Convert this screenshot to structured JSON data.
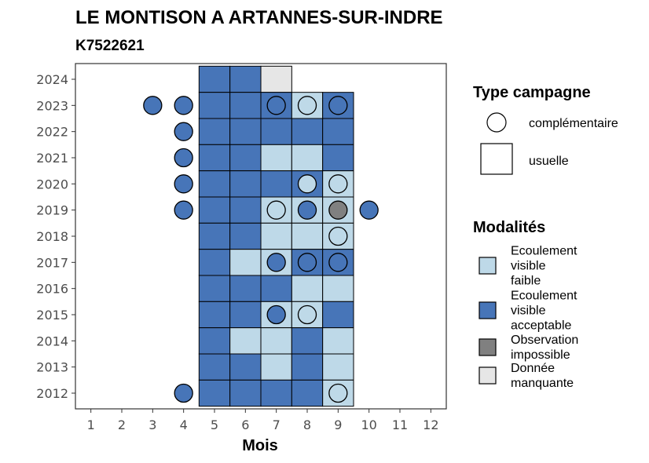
{
  "chart_data": {
    "type": "heatmap",
    "title": "LE MONTISON A ARTANNES-SUR-INDRE",
    "subtitle": "K7522621",
    "xlabel": "Mois",
    "ylabel": "",
    "x_ticks": [
      "1",
      "2",
      "3",
      "4",
      "5",
      "6",
      "7",
      "8",
      "9",
      "10",
      "11",
      "12"
    ],
    "y_ticks": [
      "2012",
      "2013",
      "2014",
      "2015",
      "2016",
      "2017",
      "2018",
      "2019",
      "2020",
      "2021",
      "2022",
      "2023",
      "2024"
    ],
    "xlim": [
      0.5,
      12.5
    ],
    "ylim": [
      2011.4,
      2024.6
    ],
    "grid": false,
    "legend_position": "right",
    "colors": {
      "Ecoulement visible faible": "#bed9e8",
      "Ecoulement visible acceptable": "#4775b8",
      "Observation impossible": "#808080",
      "Donnée manquante": "#e6e6e6"
    },
    "legend_shape": {
      "title": "Type campagne",
      "items": [
        "complémentaire",
        "usuelle"
      ]
    },
    "legend_fill": {
      "title": "Modalités",
      "items": [
        {
          "key": "Ecoulement visible faible",
          "lines": [
            "Ecoulement",
            "visible",
            "faible"
          ]
        },
        {
          "key": "Ecoulement visible acceptable",
          "lines": [
            "Ecoulement",
            "visible",
            "acceptable"
          ]
        },
        {
          "key": "Observation impossible",
          "lines": [
            "Observation",
            "impossible"
          ]
        },
        {
          "key": "Donnée manquante",
          "lines": [
            "Donnée",
            "manquante"
          ]
        }
      ]
    },
    "usual_campaigns": [
      {
        "year": 2024,
        "month": 5,
        "m": "Ecoulement visible acceptable"
      },
      {
        "year": 2024,
        "month": 6,
        "m": "Ecoulement visible acceptable"
      },
      {
        "year": 2024,
        "month": 7,
        "m": "Donnée manquante"
      },
      {
        "year": 2023,
        "month": 5,
        "m": "Ecoulement visible acceptable"
      },
      {
        "year": 2023,
        "month": 6,
        "m": "Ecoulement visible acceptable"
      },
      {
        "year": 2023,
        "month": 7,
        "m": "Ecoulement visible acceptable"
      },
      {
        "year": 2023,
        "month": 8,
        "m": "Ecoulement visible faible"
      },
      {
        "year": 2023,
        "month": 9,
        "m": "Ecoulement visible acceptable"
      },
      {
        "year": 2022,
        "month": 5,
        "m": "Ecoulement visible acceptable"
      },
      {
        "year": 2022,
        "month": 6,
        "m": "Ecoulement visible acceptable"
      },
      {
        "year": 2022,
        "month": 7,
        "m": "Ecoulement visible acceptable"
      },
      {
        "year": 2022,
        "month": 8,
        "m": "Ecoulement visible acceptable"
      },
      {
        "year": 2022,
        "month": 9,
        "m": "Ecoulement visible acceptable"
      },
      {
        "year": 2021,
        "month": 5,
        "m": "Ecoulement visible acceptable"
      },
      {
        "year": 2021,
        "month": 6,
        "m": "Ecoulement visible acceptable"
      },
      {
        "year": 2021,
        "month": 7,
        "m": "Ecoulement visible faible"
      },
      {
        "year": 2021,
        "month": 8,
        "m": "Ecoulement visible faible"
      },
      {
        "year": 2021,
        "month": 9,
        "m": "Ecoulement visible acceptable"
      },
      {
        "year": 2020,
        "month": 5,
        "m": "Ecoulement visible acceptable"
      },
      {
        "year": 2020,
        "month": 6,
        "m": "Ecoulement visible acceptable"
      },
      {
        "year": 2020,
        "month": 7,
        "m": "Ecoulement visible acceptable"
      },
      {
        "year": 2020,
        "month": 8,
        "m": "Ecoulement visible acceptable"
      },
      {
        "year": 2020,
        "month": 9,
        "m": "Ecoulement visible faible"
      },
      {
        "year": 2019,
        "month": 5,
        "m": "Ecoulement visible acceptable"
      },
      {
        "year": 2019,
        "month": 6,
        "m": "Ecoulement visible acceptable"
      },
      {
        "year": 2019,
        "month": 7,
        "m": "Ecoulement visible faible"
      },
      {
        "year": 2019,
        "month": 8,
        "m": "Ecoulement visible faible"
      },
      {
        "year": 2019,
        "month": 9,
        "m": "Ecoulement visible faible"
      },
      {
        "year": 2018,
        "month": 5,
        "m": "Ecoulement visible acceptable"
      },
      {
        "year": 2018,
        "month": 6,
        "m": "Ecoulement visible acceptable"
      },
      {
        "year": 2018,
        "month": 7,
        "m": "Ecoulement visible faible"
      },
      {
        "year": 2018,
        "month": 8,
        "m": "Ecoulement visible faible"
      },
      {
        "year": 2018,
        "month": 9,
        "m": "Ecoulement visible faible"
      },
      {
        "year": 2017,
        "month": 5,
        "m": "Ecoulement visible acceptable"
      },
      {
        "year": 2017,
        "month": 6,
        "m": "Ecoulement visible faible"
      },
      {
        "year": 2017,
        "month": 7,
        "m": "Ecoulement visible faible"
      },
      {
        "year": 2017,
        "month": 8,
        "m": "Ecoulement visible acceptable"
      },
      {
        "year": 2017,
        "month": 9,
        "m": "Ecoulement visible acceptable"
      },
      {
        "year": 2016,
        "month": 5,
        "m": "Ecoulement visible acceptable"
      },
      {
        "year": 2016,
        "month": 6,
        "m": "Ecoulement visible acceptable"
      },
      {
        "year": 2016,
        "month": 7,
        "m": "Ecoulement visible acceptable"
      },
      {
        "year": 2016,
        "month": 8,
        "m": "Ecoulement visible faible"
      },
      {
        "year": 2016,
        "month": 9,
        "m": "Ecoulement visible faible"
      },
      {
        "year": 2015,
        "month": 5,
        "m": "Ecoulement visible acceptable"
      },
      {
        "year": 2015,
        "month": 6,
        "m": "Ecoulement visible acceptable"
      },
      {
        "year": 2015,
        "month": 7,
        "m": "Ecoulement visible faible"
      },
      {
        "year": 2015,
        "month": 8,
        "m": "Ecoulement visible faible"
      },
      {
        "year": 2015,
        "month": 9,
        "m": "Ecoulement visible acceptable"
      },
      {
        "year": 2014,
        "month": 5,
        "m": "Ecoulement visible acceptable"
      },
      {
        "year": 2014,
        "month": 6,
        "m": "Ecoulement visible faible"
      },
      {
        "year": 2014,
        "month": 7,
        "m": "Ecoulement visible faible"
      },
      {
        "year": 2014,
        "month": 8,
        "m": "Ecoulement visible acceptable"
      },
      {
        "year": 2014,
        "month": 9,
        "m": "Ecoulement visible faible"
      },
      {
        "year": 2013,
        "month": 5,
        "m": "Ecoulement visible acceptable"
      },
      {
        "year": 2013,
        "month": 6,
        "m": "Ecoulement visible acceptable"
      },
      {
        "year": 2013,
        "month": 7,
        "m": "Ecoulement visible faible"
      },
      {
        "year": 2013,
        "month": 8,
        "m": "Ecoulement visible acceptable"
      },
      {
        "year": 2013,
        "month": 9,
        "m": "Ecoulement visible faible"
      },
      {
        "year": 2012,
        "month": 5,
        "m": "Ecoulement visible acceptable"
      },
      {
        "year": 2012,
        "month": 6,
        "m": "Ecoulement visible acceptable"
      },
      {
        "year": 2012,
        "month": 7,
        "m": "Ecoulement visible acceptable"
      },
      {
        "year": 2012,
        "month": 8,
        "m": "Ecoulement visible acceptable"
      },
      {
        "year": 2012,
        "month": 9,
        "m": "Ecoulement visible faible"
      }
    ],
    "complementary_campaigns": [
      {
        "year": 2023,
        "month": 3,
        "m": "Ecoulement visible acceptable"
      },
      {
        "year": 2023,
        "month": 4,
        "m": "Ecoulement visible acceptable"
      },
      {
        "year": 2023,
        "month": 7,
        "m": "Ecoulement visible acceptable"
      },
      {
        "year": 2023,
        "month": 8,
        "m": "Ecoulement visible faible"
      },
      {
        "year": 2023,
        "month": 9,
        "m": "Ecoulement visible acceptable"
      },
      {
        "year": 2022,
        "month": 4,
        "m": "Ecoulement visible acceptable"
      },
      {
        "year": 2021,
        "month": 4,
        "m": "Ecoulement visible acceptable"
      },
      {
        "year": 2020,
        "month": 4,
        "m": "Ecoulement visible acceptable"
      },
      {
        "year": 2020,
        "month": 8,
        "m": "Ecoulement visible faible"
      },
      {
        "year": 2020,
        "month": 9,
        "m": "Ecoulement visible faible"
      },
      {
        "year": 2019,
        "month": 4,
        "m": "Ecoulement visible acceptable"
      },
      {
        "year": 2019,
        "month": 7,
        "m": "Ecoulement visible faible"
      },
      {
        "year": 2019,
        "month": 8,
        "m": "Ecoulement visible acceptable"
      },
      {
        "year": 2019,
        "month": 9,
        "m": "Observation impossible"
      },
      {
        "year": 2019,
        "month": 10,
        "m": "Ecoulement visible acceptable"
      },
      {
        "year": 2018,
        "month": 9,
        "m": "Ecoulement visible faible"
      },
      {
        "year": 2017,
        "month": 7,
        "m": "Ecoulement visible acceptable"
      },
      {
        "year": 2017,
        "month": 8,
        "m": "Ecoulement visible acceptable"
      },
      {
        "year": 2017,
        "month": 9,
        "m": "Ecoulement visible acceptable"
      },
      {
        "year": 2015,
        "month": 7,
        "m": "Ecoulement visible acceptable"
      },
      {
        "year": 2015,
        "month": 8,
        "m": "Ecoulement visible faible"
      },
      {
        "year": 2012,
        "month": 4,
        "m": "Ecoulement visible acceptable"
      },
      {
        "year": 2012,
        "month": 9,
        "m": "Ecoulement visible faible"
      }
    ]
  }
}
